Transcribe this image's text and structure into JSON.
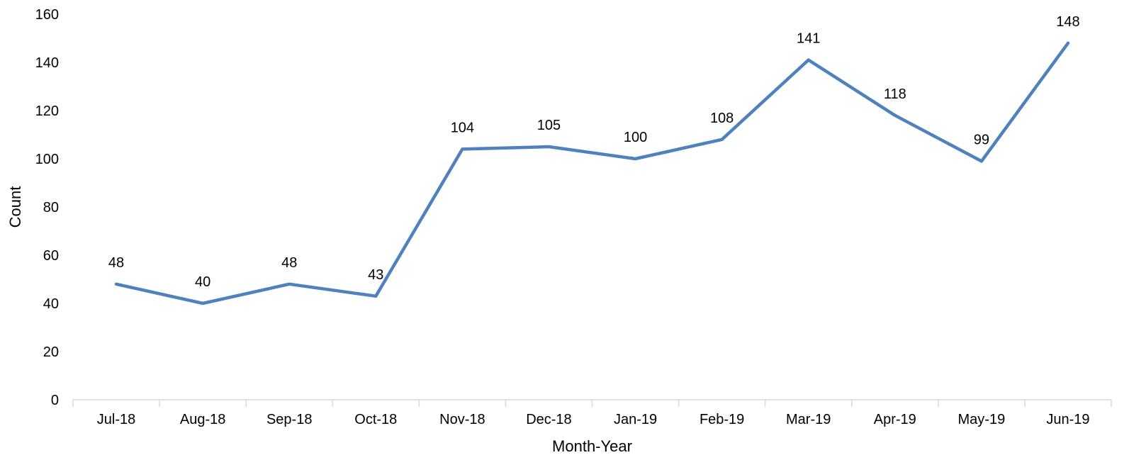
{
  "chart_data": {
    "type": "line",
    "title": "",
    "xlabel": "Month-Year",
    "ylabel": "Count",
    "ylim": [
      0,
      160
    ],
    "yticks": [
      0,
      20,
      40,
      60,
      80,
      100,
      120,
      140,
      160
    ],
    "grid": false,
    "legend": "none",
    "categories": [
      "Jul-18",
      "Aug-18",
      "Sep-18",
      "Oct-18",
      "Nov-18",
      "Dec-18",
      "Jan-19",
      "Feb-19",
      "Mar-19",
      "Apr-19",
      "May-19",
      "Jun-19"
    ],
    "series": [
      {
        "values": [
          48,
          40,
          48,
          43,
          104,
          105,
          100,
          108,
          141,
          118,
          99,
          148
        ],
        "color": "#4F81BD"
      }
    ],
    "data_labels": true
  }
}
